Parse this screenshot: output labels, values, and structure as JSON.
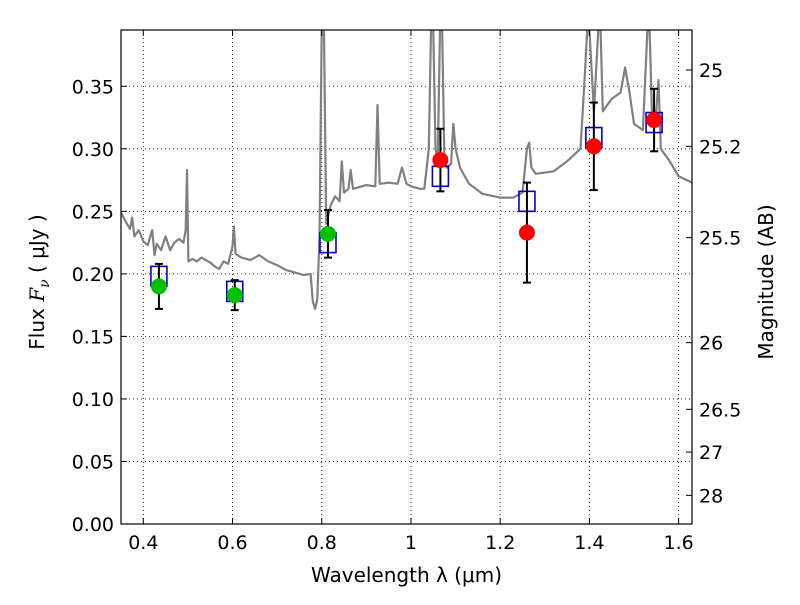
{
  "chart_data": {
    "type": "scatter",
    "xlabel": "Wavelength  λ (μm)",
    "ylabel_prefix": "Flux  ",
    "ylabel_math": "F",
    "ylabel_sub": "ν",
    "ylabel_suffix": "  ( μJy )",
    "y2label": "Magnitude (AB)",
    "xlim": [
      0.35,
      1.63
    ],
    "ylim": [
      0.0,
      0.395
    ],
    "grid": true,
    "x_ticks": [
      {
        "value": 0.4,
        "label": "0.4"
      },
      {
        "value": 0.6,
        "label": "0.6"
      },
      {
        "value": 0.8,
        "label": "0.8"
      },
      {
        "value": 1.0,
        "label": "1"
      },
      {
        "value": 1.2,
        "label": "1.2"
      },
      {
        "value": 1.4,
        "label": "1.4"
      },
      {
        "value": 1.6,
        "label": "1.6"
      }
    ],
    "y_ticks": [
      {
        "value": 0.0,
        "label": "0.00"
      },
      {
        "value": 0.05,
        "label": "0.05"
      },
      {
        "value": 0.1,
        "label": "0.10"
      },
      {
        "value": 0.15,
        "label": "0.15"
      },
      {
        "value": 0.2,
        "label": "0.20"
      },
      {
        "value": 0.25,
        "label": "0.25"
      },
      {
        "value": 0.3,
        "label": "0.30"
      },
      {
        "value": 0.35,
        "label": "0.35"
      }
    ],
    "y2_ticks": [
      {
        "label": "25",
        "flux": 0.363
      },
      {
        "label": "25.2",
        "flux": 0.302
      },
      {
        "label": "25.5",
        "flux": 0.229
      },
      {
        "label": "26",
        "flux": 0.145
      },
      {
        "label": "26.5",
        "flux": 0.0917
      },
      {
        "label": "27",
        "flux": 0.0575
      },
      {
        "label": "28",
        "flux": 0.0229
      }
    ],
    "model_spectrum": {
      "color": "#808080",
      "points": [
        [
          0.35,
          0.249
        ],
        [
          0.36,
          0.242
        ],
        [
          0.37,
          0.236
        ],
        [
          0.375,
          0.245
        ],
        [
          0.38,
          0.23
        ],
        [
          0.39,
          0.235
        ],
        [
          0.4,
          0.226
        ],
        [
          0.41,
          0.223
        ],
        [
          0.42,
          0.235
        ],
        [
          0.425,
          0.215
        ],
        [
          0.43,
          0.224
        ],
        [
          0.44,
          0.219
        ],
        [
          0.45,
          0.23
        ],
        [
          0.46,
          0.219
        ],
        [
          0.47,
          0.225
        ],
        [
          0.48,
          0.228
        ],
        [
          0.49,
          0.225
        ],
        [
          0.495,
          0.235
        ],
        [
          0.498,
          0.283
        ],
        [
          0.501,
          0.21
        ],
        [
          0.51,
          0.212
        ],
        [
          0.52,
          0.21
        ],
        [
          0.53,
          0.213
        ],
        [
          0.54,
          0.211
        ],
        [
          0.55,
          0.209
        ],
        [
          0.56,
          0.206
        ],
        [
          0.57,
          0.204
        ],
        [
          0.58,
          0.21
        ],
        [
          0.59,
          0.208
        ],
        [
          0.595,
          0.215
        ],
        [
          0.6,
          0.222
        ],
        [
          0.603,
          0.238
        ],
        [
          0.607,
          0.216
        ],
        [
          0.62,
          0.213
        ],
        [
          0.64,
          0.211
        ],
        [
          0.66,
          0.215
        ],
        [
          0.68,
          0.21
        ],
        [
          0.7,
          0.207
        ],
        [
          0.72,
          0.203
        ],
        [
          0.74,
          0.201
        ],
        [
          0.76,
          0.199
        ],
        [
          0.775,
          0.2
        ],
        [
          0.78,
          0.178
        ],
        [
          0.785,
          0.172
        ],
        [
          0.79,
          0.18
        ],
        [
          0.795,
          0.23
        ],
        [
          0.8,
          0.395
        ],
        [
          0.805,
          0.395
        ],
        [
          0.81,
          0.24
        ],
        [
          0.82,
          0.255
        ],
        [
          0.83,
          0.262
        ],
        [
          0.84,
          0.258
        ],
        [
          0.845,
          0.29
        ],
        [
          0.85,
          0.265
        ],
        [
          0.86,
          0.268
        ],
        [
          0.865,
          0.283
        ],
        [
          0.87,
          0.268
        ],
        [
          0.88,
          0.269
        ],
        [
          0.9,
          0.271
        ],
        [
          0.92,
          0.27
        ],
        [
          0.925,
          0.335
        ],
        [
          0.93,
          0.272
        ],
        [
          0.95,
          0.273
        ],
        [
          0.97,
          0.272
        ],
        [
          0.98,
          0.285
        ],
        [
          0.99,
          0.272
        ],
        [
          1.0,
          0.27
        ],
        [
          1.02,
          0.268
        ],
        [
          1.03,
          0.268
        ],
        [
          1.04,
          0.3
        ],
        [
          1.045,
          0.395
        ],
        [
          1.05,
          0.395
        ],
        [
          1.055,
          0.3
        ],
        [
          1.06,
          0.29
        ],
        [
          1.065,
          0.395
        ],
        [
          1.07,
          0.395
        ],
        [
          1.075,
          0.29
        ],
        [
          1.08,
          0.285
        ],
        [
          1.09,
          0.288
        ],
        [
          1.095,
          0.32
        ],
        [
          1.1,
          0.3
        ],
        [
          1.11,
          0.285
        ],
        [
          1.13,
          0.272
        ],
        [
          1.16,
          0.264
        ],
        [
          1.2,
          0.261
        ],
        [
          1.23,
          0.261
        ],
        [
          1.25,
          0.265
        ],
        [
          1.26,
          0.3
        ],
        [
          1.265,
          0.305
        ],
        [
          1.27,
          0.285
        ],
        [
          1.28,
          0.28
        ],
        [
          1.32,
          0.282
        ],
        [
          1.35,
          0.29
        ],
        [
          1.38,
          0.3
        ],
        [
          1.39,
          0.36
        ],
        [
          1.395,
          0.395
        ],
        [
          1.4,
          0.395
        ],
        [
          1.41,
          0.33
        ],
        [
          1.42,
          0.395
        ],
        [
          1.425,
          0.395
        ],
        [
          1.43,
          0.33
        ],
        [
          1.45,
          0.34
        ],
        [
          1.47,
          0.345
        ],
        [
          1.48,
          0.365
        ],
        [
          1.49,
          0.345
        ],
        [
          1.5,
          0.32
        ],
        [
          1.52,
          0.315
        ],
        [
          1.53,
          0.395
        ],
        [
          1.535,
          0.395
        ],
        [
          1.54,
          0.33
        ],
        [
          1.55,
          0.33
        ],
        [
          1.555,
          0.355
        ],
        [
          1.56,
          0.3
        ],
        [
          1.58,
          0.29
        ],
        [
          1.6,
          0.278
        ],
        [
          1.63,
          0.273
        ]
      ]
    },
    "model_boxes": {
      "color": "#0000cc",
      "points": [
        [
          0.435,
          0.198
        ],
        [
          0.605,
          0.186
        ],
        [
          0.814,
          0.225
        ],
        [
          1.066,
          0.278
        ],
        [
          1.26,
          0.258
        ],
        [
          1.41,
          0.309
        ],
        [
          1.545,
          0.321
        ]
      ]
    },
    "observed_points": [
      {
        "x": 0.435,
        "y": 0.19,
        "err": 0.018,
        "color": "#00c000"
      },
      {
        "x": 0.605,
        "y": 0.183,
        "err": 0.012,
        "color": "#00c000"
      },
      {
        "x": 0.814,
        "y": 0.232,
        "err": 0.019,
        "color": "#00c000"
      },
      {
        "x": 1.066,
        "y": 0.291,
        "err": 0.025,
        "color": "#ff0000"
      },
      {
        "x": 1.26,
        "y": 0.233,
        "err": 0.04,
        "color": "#ff0000"
      },
      {
        "x": 1.41,
        "y": 0.302,
        "err": 0.035,
        "color": "#ff0000"
      },
      {
        "x": 1.545,
        "y": 0.323,
        "err": 0.025,
        "color": "#ff0000"
      }
    ]
  }
}
